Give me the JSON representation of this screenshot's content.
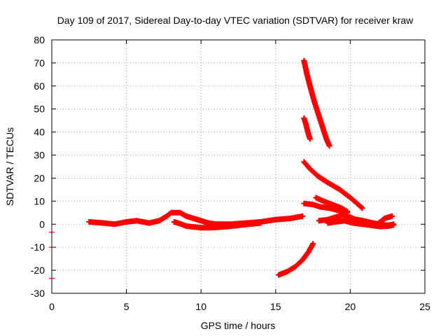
{
  "chart_data": {
    "type": "scatter",
    "title": "Day 109 of 2017, Sidereal Day-to-day VTEC variation (SDTVAR) for receiver kraw",
    "xlabel": "GPS time / hours",
    "ylabel": "SDTVAR / TECUs",
    "xlim": [
      0,
      25
    ],
    "ylim": [
      -30,
      80
    ],
    "xticks": [
      0,
      5,
      10,
      15,
      20,
      25
    ],
    "xtick_labels": [
      "0",
      "5",
      "10",
      "15",
      "20",
      "25"
    ],
    "yticks": [
      -30,
      -20,
      -10,
      0,
      10,
      20,
      30,
      40,
      50,
      60,
      70,
      80
    ],
    "ytick_labels": [
      "-30",
      "-20",
      "-10",
      "0",
      "10",
      "20",
      "30",
      "40",
      "50",
      "60",
      "70",
      "80"
    ],
    "grid": true,
    "color": "#ff0000",
    "series": [
      {
        "x": [
          2.5,
          3.5,
          4.2,
          5.0,
          5.7,
          6.5,
          7.2,
          7.7,
          8.0,
          8.6,
          9.0,
          9.5,
          10.0,
          10.5,
          11.0,
          12.0,
          13.0,
          14.0,
          15.0,
          16.0,
          16.8
        ],
        "y": [
          1.0,
          0.5,
          0.0,
          1.0,
          1.5,
          0.5,
          1.5,
          3.5,
          5.0,
          5.0,
          3.5,
          2.5,
          1.5,
          0.5,
          0.0,
          0.0,
          0.5,
          1.0,
          2.0,
          2.5,
          3.5
        ]
      },
      {
        "x": [
          8.2,
          8.6,
          9.0,
          9.5,
          10.0,
          10.6,
          11.2,
          11.8,
          12.5,
          13.2,
          14.0
        ],
        "y": [
          1.0,
          0.2,
          -0.8,
          -1.2,
          -1.5,
          -1.5,
          -1.3,
          -1.0,
          -0.5,
          0.0,
          0.5
        ]
      },
      {
        "x": [
          16.9,
          17.1,
          17.3,
          17.6,
          17.9,
          18.2,
          18.4,
          18.6
        ],
        "y": [
          71.0,
          65.0,
          60.0,
          53.0,
          47.0,
          41.0,
          37.0,
          34.0
        ]
      },
      {
        "x": [
          16.9,
          17.0,
          17.1,
          17.2,
          17.3
        ],
        "y": [
          46.0,
          44.0,
          41.5,
          39.0,
          37.0
        ]
      },
      {
        "x": [
          16.9,
          17.3,
          17.8,
          18.5,
          19.3,
          20.1,
          20.8
        ],
        "y": [
          27.0,
          24.0,
          21.0,
          18.0,
          15.0,
          11.0,
          7.0
        ]
      },
      {
        "x": [
          16.9,
          17.5,
          18.0,
          18.6,
          19.2,
          19.8
        ],
        "y": [
          9.0,
          8.5,
          7.5,
          7.0,
          6.0,
          5.0
        ]
      },
      {
        "x": [
          17.7,
          18.2,
          18.8,
          19.4,
          19.8
        ],
        "y": [
          11.5,
          10.0,
          8.5,
          7.0,
          5.5
        ]
      },
      {
        "x": [
          15.2,
          15.8,
          16.3,
          16.8,
          17.2,
          17.5
        ],
        "y": [
          -22.0,
          -20.5,
          -18.5,
          -15.5,
          -12.0,
          -8.5
        ]
      },
      {
        "x": [
          17.9,
          18.5,
          19.0,
          19.5,
          20.0,
          20.5,
          21.0,
          21.5,
          22.0,
          22.5,
          22.9
        ],
        "y": [
          1.5,
          2.0,
          3.0,
          4.0,
          3.0,
          1.5,
          1.0,
          0.5,
          0.0,
          -0.5,
          0.0
        ]
      },
      {
        "x": [
          18.5,
          19.0,
          19.6,
          20.2,
          20.8,
          21.4,
          22.0,
          22.6,
          22.9
        ],
        "y": [
          0.5,
          1.0,
          1.5,
          0.5,
          0.0,
          -0.5,
          -1.0,
          -0.8,
          -0.3
        ]
      },
      {
        "x": [
          19.8,
          20.5,
          21.2,
          21.8,
          22.3,
          22.8
        ],
        "y": [
          2.5,
          2.0,
          1.0,
          0.0,
          2.5,
          3.5
        ]
      }
    ],
    "outliers": {
      "x": [
        0.0,
        0.0,
        0.0
      ],
      "y": [
        -3.5,
        -10.0,
        -23.5
      ]
    }
  }
}
